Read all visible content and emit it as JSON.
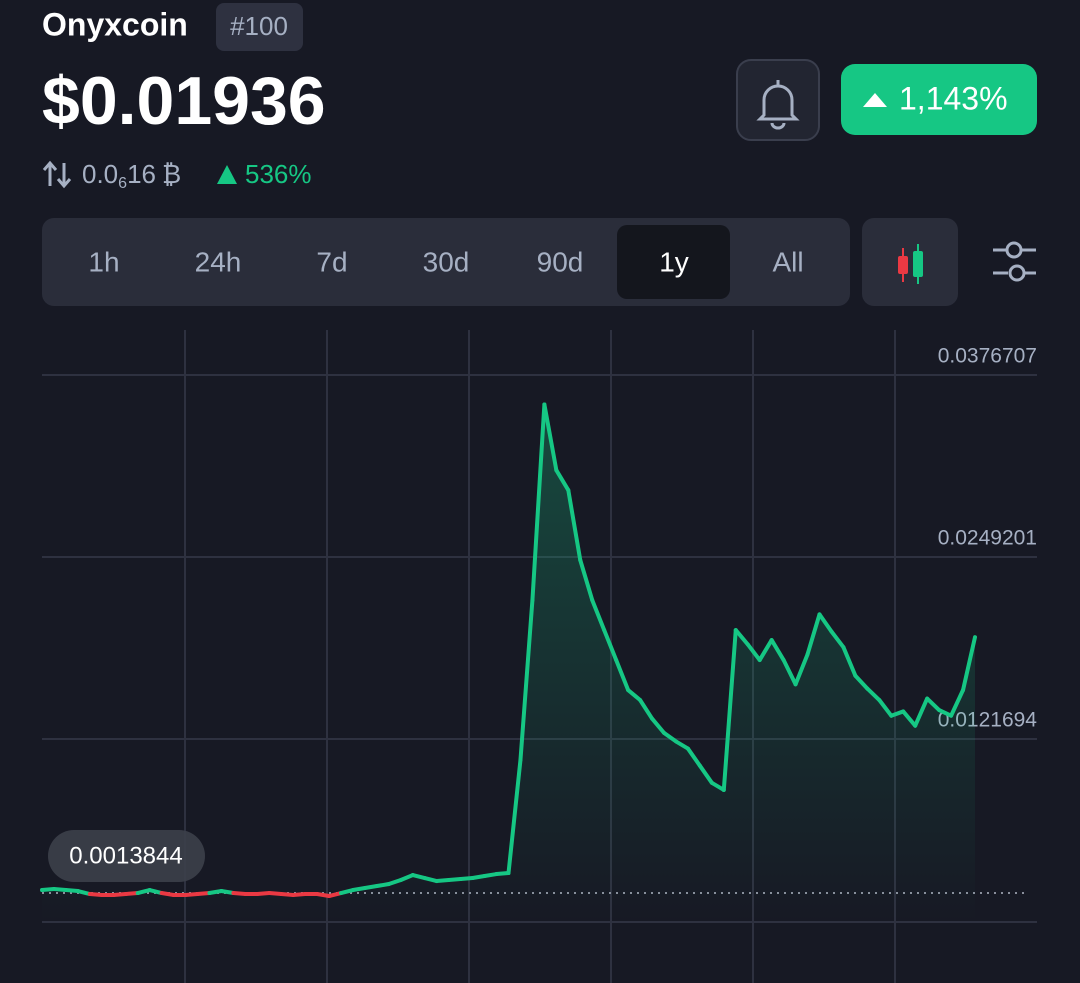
{
  "header": {
    "name": "Onyxcoin",
    "rank": "#100",
    "price": "$0.01936",
    "btc_price": {
      "lead": "0.0",
      "zeros": "6",
      "digits": "16",
      "symbol": "₿"
    },
    "btc_change": "536%",
    "change": "1,143%"
  },
  "timeframes": {
    "options": [
      "1h",
      "24h",
      "7d",
      "30d",
      "90d",
      "1y",
      "All"
    ],
    "selected": 5
  },
  "chart_data": {
    "type": "line",
    "color": "#16c784",
    "down_color": "#ea3943",
    "baseline": 0.0013844,
    "values": [
      0.00159,
      0.00166,
      0.00159,
      0.00152,
      0.00131,
      0.00124,
      0.00124,
      0.00131,
      0.00138,
      0.00159,
      0.00138,
      0.00124,
      0.00124,
      0.00131,
      0.00138,
      0.00152,
      0.00138,
      0.00131,
      0.00131,
      0.00138,
      0.00131,
      0.00124,
      0.00131,
      0.00131,
      0.00117,
      0.00138,
      0.00159,
      0.00173,
      0.00187,
      0.00201,
      0.00229,
      0.00264,
      0.00243,
      0.00222,
      0.00229,
      0.00236,
      0.00243,
      0.00257,
      0.00271,
      0.00278,
      0.0107,
      0.0219,
      0.0356,
      0.031,
      0.0296,
      0.0247,
      0.0219,
      0.0198,
      0.0177,
      0.0156,
      0.0149,
      0.0136,
      0.0126,
      0.012,
      0.0115,
      0.0103,
      0.0091,
      0.0086,
      0.0198,
      0.0188,
      0.0177,
      0.0191,
      0.0177,
      0.016,
      0.0181,
      0.0209,
      0.0197,
      0.0186,
      0.0166,
      0.0157,
      0.0149,
      0.0138,
      0.0141,
      0.0131,
      0.015,
      0.0142,
      0.0138,
      0.0156,
      0.0193
    ],
    "ylim": [
      -0.00065,
      0.04012
    ],
    "yticks": [
      0.0121694,
      0.0249201,
      0.0376707
    ],
    "grid": true
  }
}
